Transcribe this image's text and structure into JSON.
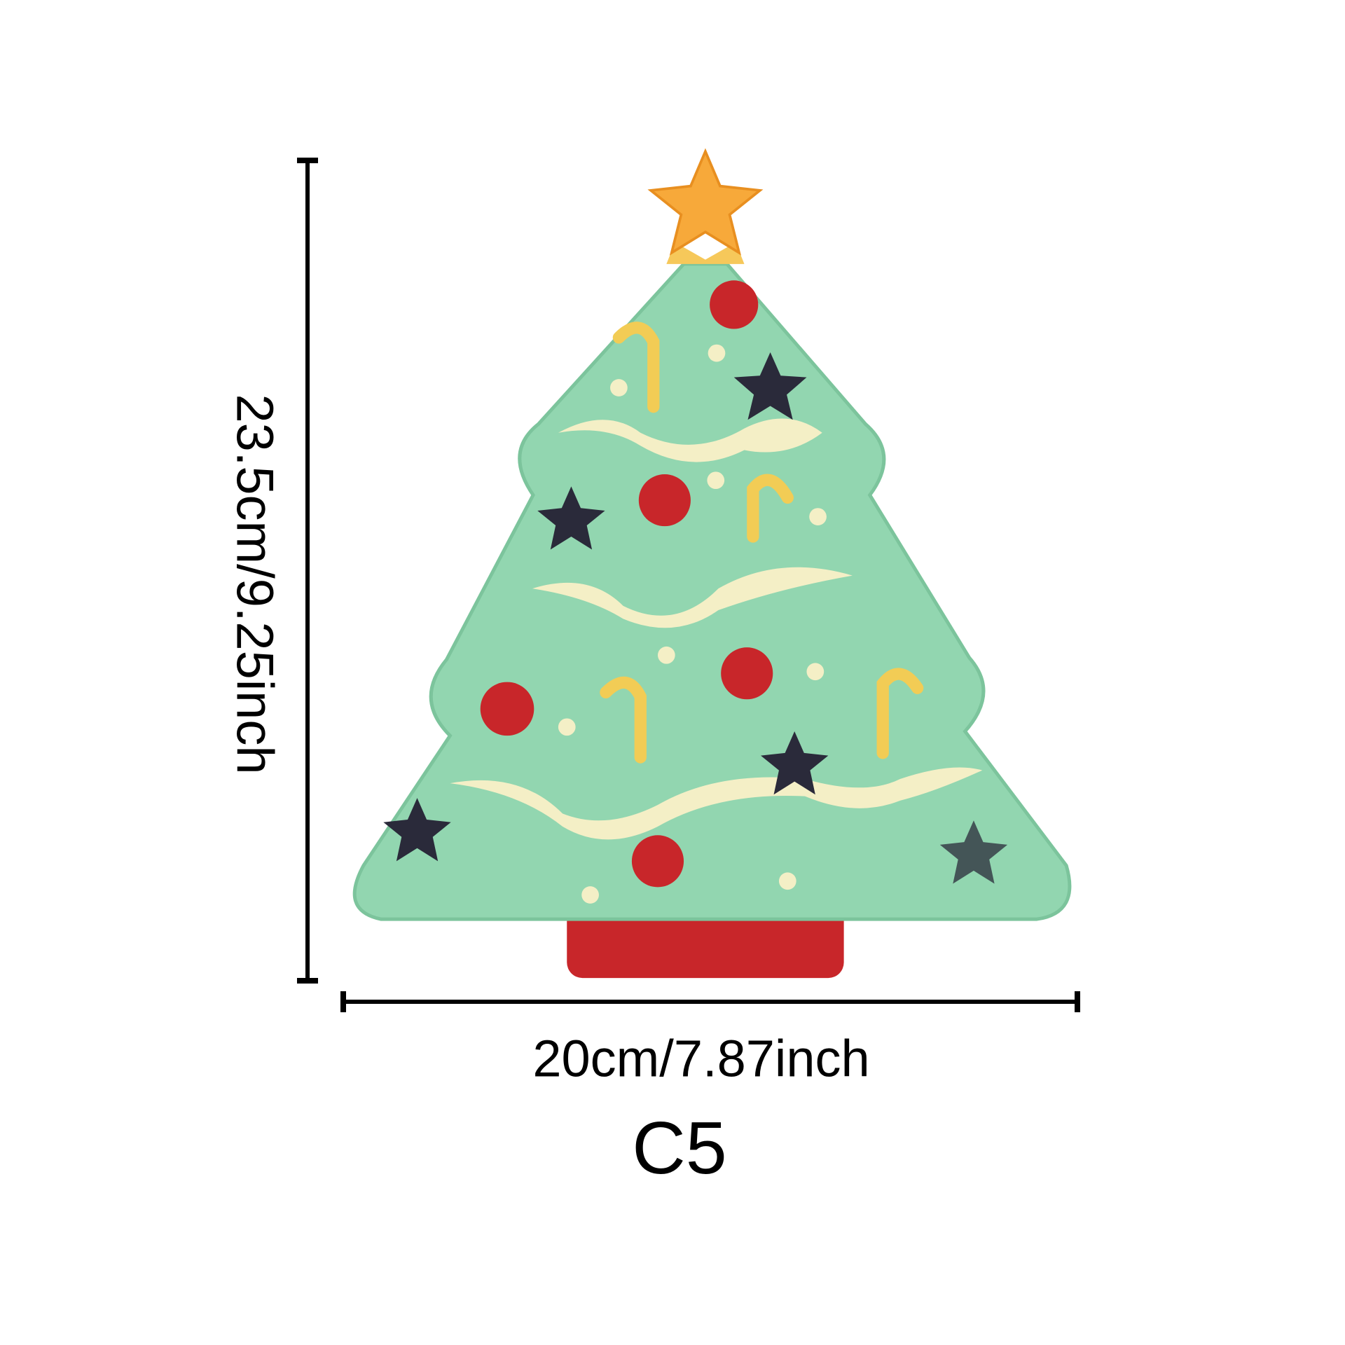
{
  "height_label": "23.5cm/9.25inch",
  "width_label": "20cm/7.87inch",
  "variant_label": "C5"
}
